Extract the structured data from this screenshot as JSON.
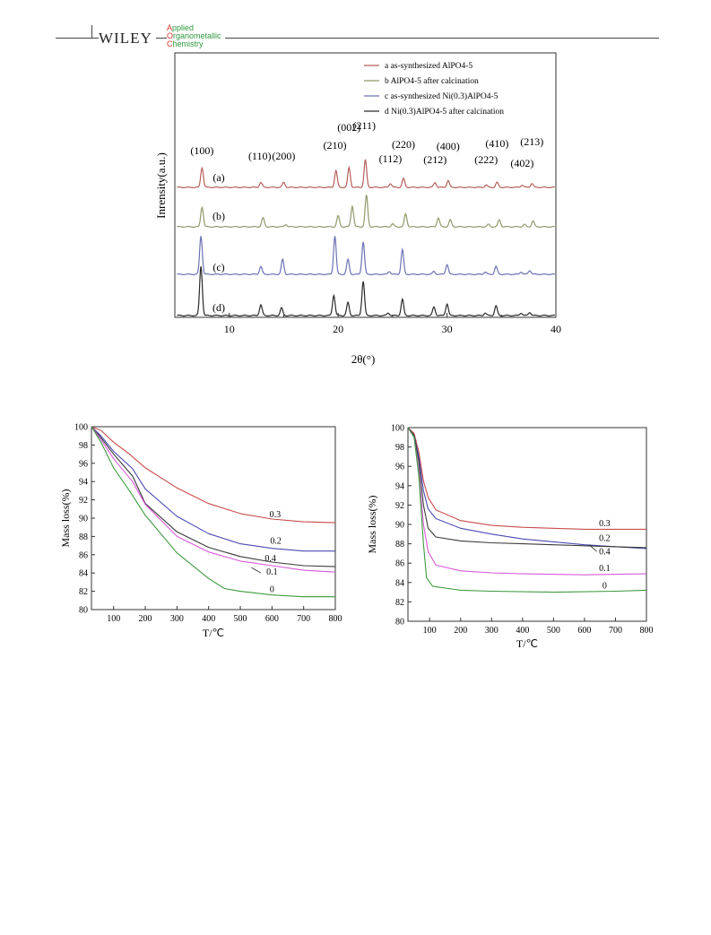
{
  "header": {
    "publisher": "WILEY",
    "journal_lines": [
      {
        "initial": "A",
        "rest": "pplied"
      },
      {
        "initial": "O",
        "rest": "rganometallic"
      },
      {
        "initial": "C",
        "rest": "hemistry"
      }
    ]
  },
  "colors": {
    "a": "#b5605a",
    "b": "#8f9a6c",
    "c": "#6c72b4",
    "d": "#2a2a2a",
    "tga_0": "#3f9a3f",
    "tga_01": "#d65ad6",
    "tga_02": "#4b4bb3",
    "tga_03": "#c94c4c",
    "tga_04": "#3a3a3a"
  },
  "chart_data": [
    {
      "type": "line",
      "xlabel": "2θ(°)",
      "ylabel": "Inrensity(a.u.)",
      "xlim": [
        5,
        40
      ],
      "xticks": [
        "10",
        "20",
        "30",
        "40"
      ],
      "legend_placement": "top-right",
      "legend": [
        "a  as-synthesized AlPO4-5",
        "b  AlPO4-5 after calcination",
        "c  as-synthesized Ni(0.3)AlPO4-5",
        "d  Ni(0.3)AlPO4-5 after calcination"
      ],
      "curve_labels": [
        "(a)",
        "(b)",
        "(c)",
        "(d)"
      ],
      "peak_labels": [
        {
          "label": "(100)",
          "x": 7.5
        },
        {
          "label": "(110)",
          "x": 12.8
        },
        {
          "label": "(200)",
          "x": 15.0
        },
        {
          "label": "(210)",
          "x": 19.7
        },
        {
          "label": "(002)",
          "x": 21.0
        },
        {
          "label": "(211)",
          "x": 22.4
        },
        {
          "label": "(112)",
          "x": 24.8
        },
        {
          "label": "(220)",
          "x": 26.0
        },
        {
          "label": "(212)",
          "x": 28.9
        },
        {
          "label": "(400)",
          "x": 30.1
        },
        {
          "label": "(222)",
          "x": 33.6
        },
        {
          "label": "(410)",
          "x": 34.6
        },
        {
          "label": "(402)",
          "x": 36.9
        },
        {
          "label": "(213)",
          "x": 37.8
        }
      ],
      "series": [
        {
          "id": "a",
          "peaks": [
            [
              7.5,
              1.0
            ],
            [
              12.9,
              0.25
            ],
            [
              15.0,
              0.25
            ],
            [
              19.8,
              0.85
            ],
            [
              21.0,
              1.0
            ],
            [
              22.5,
              1.4
            ],
            [
              24.8,
              0.2
            ],
            [
              26.0,
              0.45
            ],
            [
              28.9,
              0.25
            ],
            [
              30.1,
              0.35
            ],
            [
              33.6,
              0.12
            ],
            [
              34.6,
              0.25
            ],
            [
              36.9,
              0.12
            ],
            [
              37.8,
              0.2
            ]
          ]
        },
        {
          "id": "b",
          "peaks": [
            [
              7.5,
              1.0
            ],
            [
              13.1,
              0.45
            ],
            [
              15.2,
              0.12
            ],
            [
              20.0,
              0.55
            ],
            [
              21.3,
              1.05
            ],
            [
              22.6,
              1.6
            ],
            [
              25.0,
              0.15
            ],
            [
              26.2,
              0.65
            ],
            [
              29.2,
              0.45
            ],
            [
              30.3,
              0.35
            ],
            [
              33.8,
              0.12
            ],
            [
              34.8,
              0.35
            ],
            [
              37.1,
              0.12
            ],
            [
              37.9,
              0.3
            ]
          ]
        },
        {
          "id": "c",
          "peaks": [
            [
              7.4,
              1.95
            ],
            [
              12.9,
              0.4
            ],
            [
              14.9,
              0.75
            ],
            [
              19.7,
              1.95
            ],
            [
              20.9,
              0.75
            ],
            [
              22.3,
              1.65
            ],
            [
              24.7,
              0.15
            ],
            [
              25.9,
              1.25
            ],
            [
              28.8,
              0.15
            ],
            [
              30.0,
              0.5
            ],
            [
              33.5,
              0.12
            ],
            [
              34.5,
              0.4
            ],
            [
              36.8,
              0.12
            ],
            [
              37.6,
              0.2
            ]
          ]
        },
        {
          "id": "d",
          "peaks": [
            [
              7.4,
              2.3
            ],
            [
              12.9,
              0.5
            ],
            [
              14.8,
              0.35
            ],
            [
              19.6,
              0.95
            ],
            [
              20.9,
              0.6
            ],
            [
              22.3,
              1.6
            ],
            [
              24.6,
              0.12
            ],
            [
              25.9,
              0.75
            ],
            [
              28.8,
              0.4
            ],
            [
              30.0,
              0.55
            ],
            [
              33.5,
              0.12
            ],
            [
              34.5,
              0.45
            ],
            [
              36.8,
              0.12
            ],
            [
              37.6,
              0.15
            ]
          ]
        }
      ]
    },
    {
      "type": "line",
      "xlabel": "T/℃",
      "ylabel": "Mass loss(%)",
      "xlim": [
        30,
        800
      ],
      "ylim": [
        80,
        100
      ],
      "xticks": [
        "100",
        "200",
        "300",
        "400",
        "500",
        "600",
        "700",
        "800"
      ],
      "yticks": [
        "80",
        "82",
        "84",
        "86",
        "88",
        "90",
        "92",
        "94",
        "96",
        "98",
        "100"
      ],
      "series": [
        {
          "name": "0.3",
          "colorKey": "tga_03",
          "points": [
            [
              30,
              100
            ],
            [
              60,
              99.6
            ],
            [
              100,
              98.3
            ],
            [
              150,
              97.0
            ],
            [
              200,
              95.5
            ],
            [
              300,
              93.3
            ],
            [
              400,
              91.6
            ],
            [
              500,
              90.5
            ],
            [
              600,
              89.9
            ],
            [
              700,
              89.6
            ],
            [
              800,
              89.5
            ]
          ]
        },
        {
          "name": "0.2",
          "colorKey": "tga_02",
          "points": [
            [
              30,
              100
            ],
            [
              60,
              99.0
            ],
            [
              100,
              97.3
            ],
            [
              160,
              95.4
            ],
            [
              200,
              93.2
            ],
            [
              300,
              90.2
            ],
            [
              400,
              88.3
            ],
            [
              500,
              87.2
            ],
            [
              600,
              86.7
            ],
            [
              700,
              86.4
            ],
            [
              800,
              86.4
            ]
          ]
        },
        {
          "name": "0.4",
          "colorKey": "tga_04",
          "points": [
            [
              30,
              100
            ],
            [
              60,
              98.8
            ],
            [
              100,
              97.0
            ],
            [
              160,
              94.6
            ],
            [
              200,
              91.6
            ],
            [
              300,
              88.5
            ],
            [
              400,
              86.8
            ],
            [
              500,
              85.8
            ],
            [
              600,
              85.2
            ],
            [
              700,
              84.8
            ],
            [
              800,
              84.7
            ]
          ]
        },
        {
          "name": "0.1",
          "colorKey": "tga_01",
          "points": [
            [
              30,
              100
            ],
            [
              60,
              98.6
            ],
            [
              100,
              96.5
            ],
            [
              160,
              94.0
            ],
            [
              200,
              91.5
            ],
            [
              300,
              88.0
            ],
            [
              400,
              86.3
            ],
            [
              500,
              85.3
            ],
            [
              600,
              84.8
            ],
            [
              700,
              84.3
            ],
            [
              800,
              84.1
            ]
          ]
        },
        {
          "name": "0",
          "colorKey": "tga_0",
          "points": [
            [
              30,
              100
            ],
            [
              60,
              98.3
            ],
            [
              100,
              95.5
            ],
            [
              150,
              93.0
            ],
            [
              200,
              90.3
            ],
            [
              300,
              86.2
            ],
            [
              400,
              83.4
            ],
            [
              450,
              82.3
            ],
            [
              500,
              82.0
            ],
            [
              600,
              81.6
            ],
            [
              700,
              81.4
            ],
            [
              800,
              81.4
            ]
          ]
        }
      ]
    },
    {
      "type": "line",
      "xlabel": "T/℃",
      "ylabel": "Mass loss(%)",
      "xlim": [
        30,
        800
      ],
      "ylim": [
        80,
        100
      ],
      "xticks": [
        "100",
        "200",
        "300",
        "400",
        "500",
        "600",
        "700",
        "800"
      ],
      "yticks": [
        "80",
        "82",
        "84",
        "86",
        "88",
        "90",
        "92",
        "94",
        "96",
        "98",
        "100"
      ],
      "series": [
        {
          "name": "0.3",
          "colorKey": "tga_03",
          "points": [
            [
              30,
              100
            ],
            [
              50,
              99.4
            ],
            [
              65,
              97.5
            ],
            [
              80,
              94.5
            ],
            [
              95,
              92.8
            ],
            [
              120,
              91.5
            ],
            [
              200,
              90.4
            ],
            [
              300,
              89.9
            ],
            [
              400,
              89.7
            ],
            [
              600,
              89.5
            ],
            [
              800,
              89.5
            ]
          ]
        },
        {
          "name": "0.2",
          "colorKey": "tga_02",
          "points": [
            [
              30,
              100
            ],
            [
              50,
              99.2
            ],
            [
              65,
              97.0
            ],
            [
              80,
              93.5
            ],
            [
              95,
              91.6
            ],
            [
              120,
              90.6
            ],
            [
              200,
              89.6
            ],
            [
              300,
              89.0
            ],
            [
              400,
              88.5
            ],
            [
              600,
              87.9
            ],
            [
              800,
              87.5
            ]
          ]
        },
        {
          "name": "0.4",
          "colorKey": "tga_04",
          "points": [
            [
              30,
              100
            ],
            [
              50,
              99.2
            ],
            [
              65,
              96.5
            ],
            [
              80,
              92.0
            ],
            [
              95,
              89.6
            ],
            [
              120,
              88.7
            ],
            [
              200,
              88.3
            ],
            [
              300,
              88.1
            ],
            [
              400,
              88.0
            ],
            [
              600,
              87.8
            ],
            [
              800,
              87.6
            ]
          ]
        },
        {
          "name": "0.1",
          "colorKey": "tga_01",
          "points": [
            [
              30,
              100
            ],
            [
              50,
              99.0
            ],
            [
              65,
              95.5
            ],
            [
              80,
              90.0
            ],
            [
              95,
              87.2
            ],
            [
              120,
              85.8
            ],
            [
              200,
              85.2
            ],
            [
              300,
              85.0
            ],
            [
              400,
              84.9
            ],
            [
              600,
              84.8
            ],
            [
              800,
              84.9
            ]
          ]
        },
        {
          "name": "0",
          "colorKey": "tga_0",
          "points": [
            [
              30,
              100
            ],
            [
              50,
              99.0
            ],
            [
              65,
              95.0
            ],
            [
              80,
              88.0
            ],
            [
              90,
              84.5
            ],
            [
              110,
              83.6
            ],
            [
              200,
              83.2
            ],
            [
              300,
              83.1
            ],
            [
              500,
              83.0
            ],
            [
              700,
              83.1
            ],
            [
              800,
              83.2
            ]
          ]
        }
      ]
    }
  ]
}
